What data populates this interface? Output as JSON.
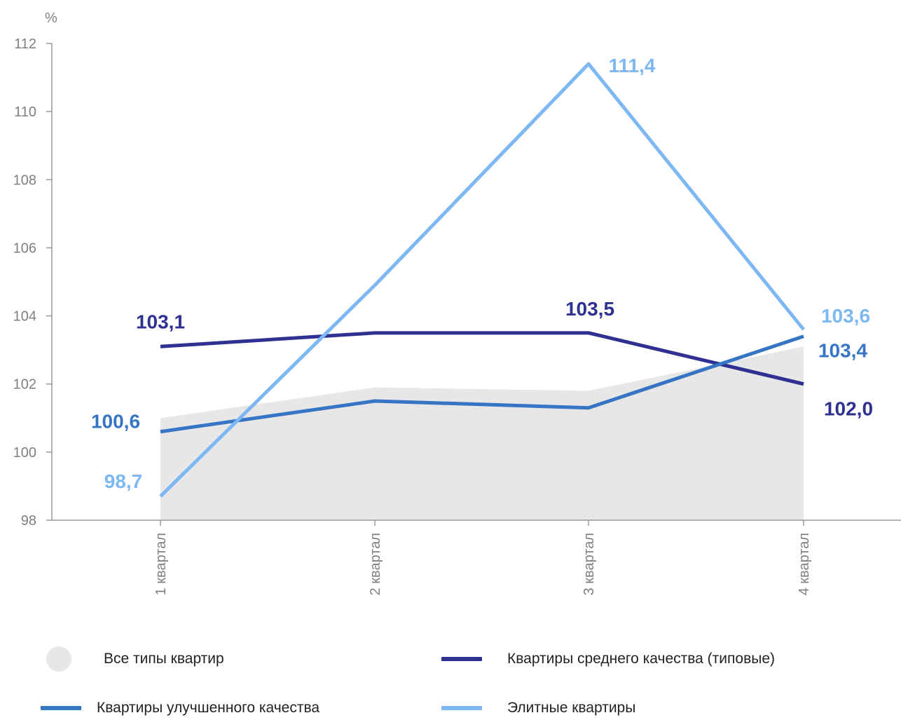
{
  "chart_data": {
    "type": "line",
    "y_unit": "%",
    "categories": [
      "1 квартал",
      "2 квартал",
      "3 квартал",
      "4 квартал"
    ],
    "ylim": [
      98,
      112
    ],
    "yticks": [
      "98",
      "100",
      "102",
      "104",
      "106",
      "108",
      "110",
      "112"
    ],
    "grid": false,
    "legend_position": "bottom",
    "series": [
      {
        "name": "Все типы квартир",
        "kind": "area",
        "color": "#e7e7e7",
        "values": [
          101.0,
          101.9,
          101.8,
          103.1
        ],
        "labels": [
          "",
          "",
          "",
          ""
        ]
      },
      {
        "name": "Квартиры среднего качества (типовые)",
        "kind": "line",
        "color": "#2e3192",
        "values": [
          103.1,
          103.5,
          103.5,
          102.0
        ],
        "labels": [
          "103,1",
          "",
          "103,5",
          "102,0"
        ]
      },
      {
        "name": "Квартиры улучшенного качества",
        "kind": "line",
        "color": "#3674c4",
        "values": [
          100.6,
          101.5,
          101.3,
          103.4
        ],
        "labels": [
          "100,6",
          "",
          "",
          "103,4"
        ]
      },
      {
        "name": "Элитные квартиры",
        "kind": "line",
        "color": "#7db8f3",
        "values": [
          98.7,
          104.9,
          111.4,
          103.6
        ],
        "labels": [
          "98,7",
          "",
          "111,4",
          "103,6"
        ]
      }
    ]
  },
  "legend": {
    "all_types": "Все типы квартир",
    "middle": "Квартиры среднего качества (типовые)",
    "improved": "Квартиры улучшенного качества",
    "elite": "Элитные квартиры"
  }
}
